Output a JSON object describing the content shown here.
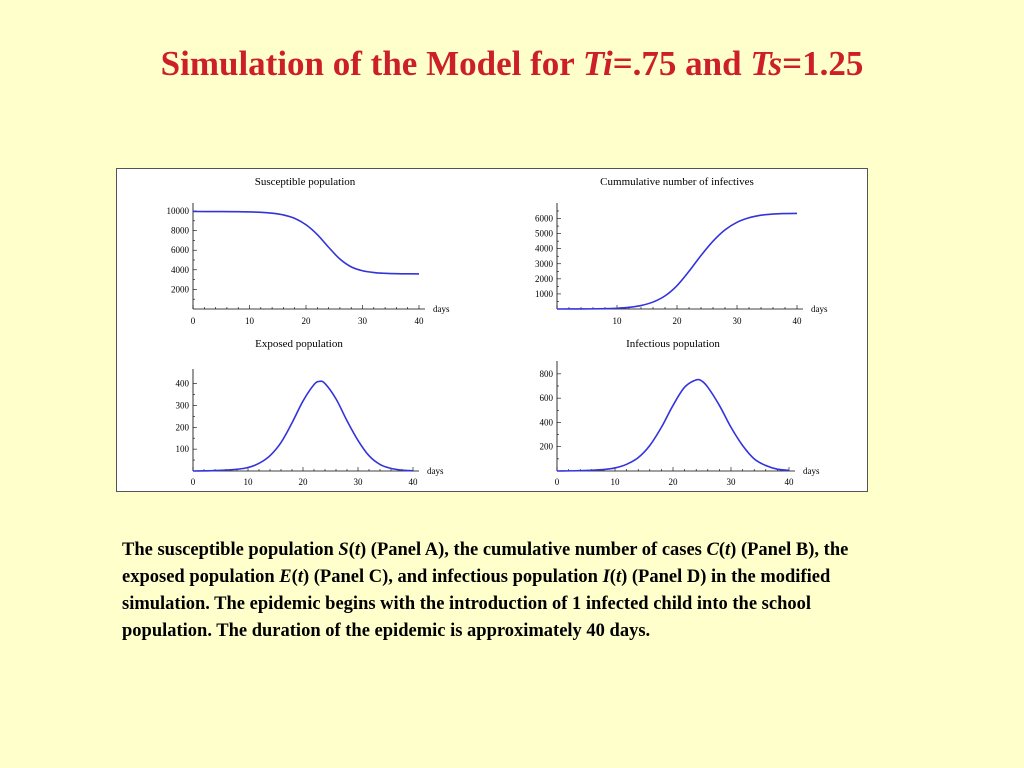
{
  "slide": {
    "title_prefix": "Simulation of the Model for ",
    "title_var1": "Ti",
    "title_mid": "=.75 and ",
    "title_var2": "Ts",
    "title_suffix": "=1.25",
    "title_color": "#cc1f2a",
    "background": "#ffffcc"
  },
  "caption": {
    "p1": "The susceptible population ",
    "v1": "S",
    "p2": "(",
    "v2": "t",
    "p3": ") (Panel A), the cumulative number of cases ",
    "v3": "C",
    "p4": "(",
    "v4": "t",
    "p5": ") (Panel B), the exposed population ",
    "v5": "E",
    "p6": "(",
    "v6": "t",
    "p7": ") (Panel C), and infectious population ",
    "v7": "I",
    "p8": "(",
    "v8": "t",
    "p9": ") (Panel D) in the modified simulation. The epidemic begins with the introduction of 1 infected child into the school population. The duration of the epidemic is approximately 40 days."
  },
  "chart_data": [
    {
      "type": "line",
      "title": "Susceptible population",
      "xlabel": "days",
      "xlim": [
        0,
        40
      ],
      "ylim": [
        0,
        10000
      ],
      "x_ticks": [
        0,
        10,
        20,
        30,
        40
      ],
      "y_ticks": [
        2000,
        4000,
        6000,
        8000,
        10000
      ],
      "color": "#3333dd",
      "series": [
        {
          "x": [
            0,
            4,
            8,
            12,
            14,
            16,
            18,
            20,
            22,
            24,
            26,
            28,
            30,
            32,
            34,
            36,
            38,
            40
          ],
          "y": [
            9950,
            9945,
            9930,
            9870,
            9780,
            9600,
            9250,
            8600,
            7600,
            6300,
            5100,
            4300,
            3900,
            3720,
            3640,
            3600,
            3590,
            3580
          ]
        }
      ]
    },
    {
      "type": "line",
      "title": "Cummulative number of infectives",
      "xlabel": "days",
      "xlim": [
        0,
        40
      ],
      "ylim": [
        0,
        6500
      ],
      "x_ticks": [
        10,
        20,
        30,
        40
      ],
      "y_ticks": [
        1000,
        2000,
        3000,
        4000,
        5000,
        6000
      ],
      "color": "#3333dd",
      "series": [
        {
          "x": [
            0,
            4,
            8,
            10,
            12,
            14,
            16,
            18,
            20,
            22,
            24,
            26,
            28,
            30,
            32,
            34,
            36,
            38,
            40
          ],
          "y": [
            0,
            5,
            20,
            50,
            110,
            230,
            460,
            870,
            1550,
            2500,
            3550,
            4500,
            5250,
            5750,
            6050,
            6220,
            6300,
            6330,
            6340
          ]
        }
      ]
    },
    {
      "type": "line",
      "title": "Exposed population",
      "xlabel": "days",
      "xlim": [
        0,
        40
      ],
      "ylim": [
        0,
        430
      ],
      "x_ticks": [
        0,
        10,
        20,
        30,
        40
      ],
      "y_ticks": [
        100,
        200,
        300,
        400
      ],
      "color": "#3333dd",
      "series": [
        {
          "x": [
            0,
            4,
            8,
            10,
            12,
            14,
            16,
            18,
            20,
            22,
            23,
            24,
            26,
            28,
            30,
            32,
            34,
            36,
            38,
            40
          ],
          "y": [
            0,
            2,
            8,
            16,
            35,
            70,
            130,
            220,
            320,
            395,
            410,
            400,
            330,
            230,
            140,
            70,
            30,
            12,
            4,
            1
          ]
        }
      ]
    },
    {
      "type": "line",
      "title": "Infectious population",
      "xlabel": "days",
      "xlim": [
        0,
        40
      ],
      "ylim": [
        0,
        840
      ],
      "x_ticks": [
        0,
        10,
        20,
        30,
        40
      ],
      "y_ticks": [
        200,
        400,
        600,
        800
      ],
      "color": "#3333dd",
      "series": [
        {
          "x": [
            0,
            4,
            8,
            10,
            12,
            14,
            16,
            18,
            20,
            22,
            24,
            25,
            26,
            28,
            30,
            32,
            34,
            36,
            38,
            40
          ],
          "y": [
            0,
            3,
            12,
            25,
            55,
            110,
            210,
            360,
            540,
            690,
            750,
            740,
            690,
            540,
            360,
            210,
            100,
            45,
            15,
            5
          ]
        }
      ]
    }
  ]
}
